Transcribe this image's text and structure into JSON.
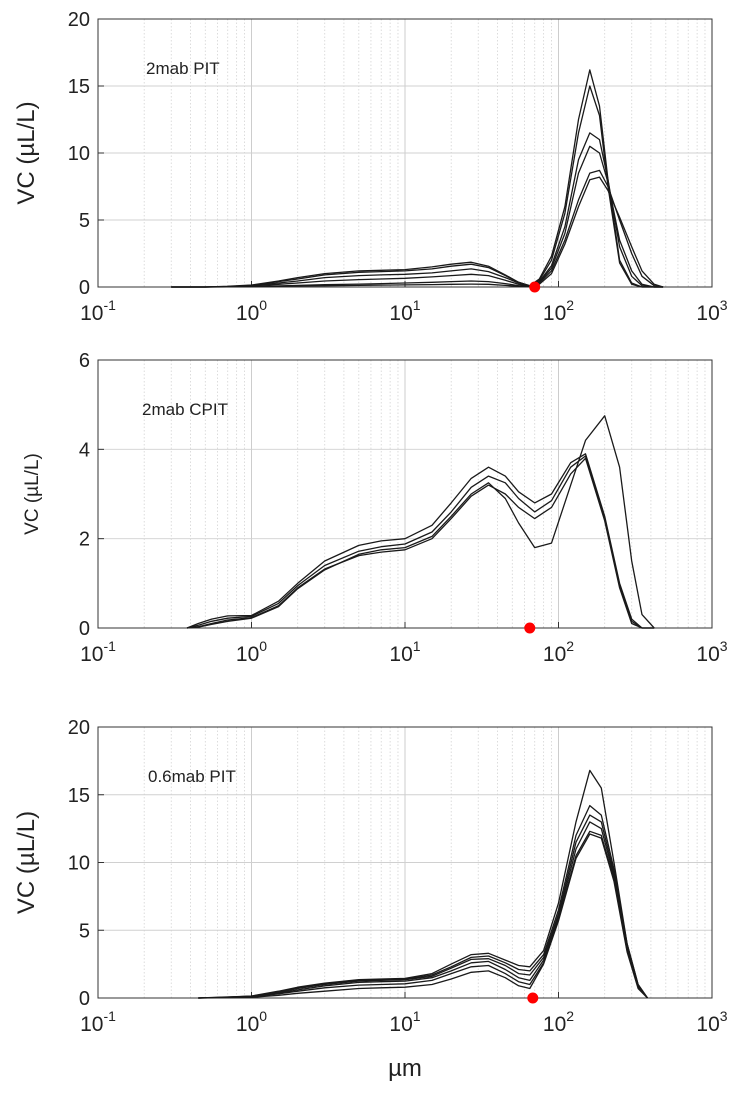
{
  "xlabel": "µm",
  "chart_data": [
    {
      "type": "line",
      "annotation": "2mab PIT",
      "ylabel": "VC (µL/L)",
      "xscale": "log",
      "xlim": [
        0.1,
        1000
      ],
      "ylim": [
        0,
        20
      ],
      "yticks": [
        "0",
        "5",
        "10",
        "15",
        "20"
      ],
      "xticks": [
        {
          "base": "10",
          "exp": "-1"
        },
        {
          "base": "10",
          "exp": "0"
        },
        {
          "base": "10",
          "exp": "1"
        },
        {
          "base": "10",
          "exp": "2"
        },
        {
          "base": "10",
          "exp": "3"
        }
      ],
      "grid": true,
      "marker": {
        "x": 70,
        "y": 0,
        "color": "#ff0000"
      },
      "x": [
        0.3,
        0.5,
        0.7,
        1,
        1.5,
        2,
        3,
        5,
        7,
        10,
        15,
        20,
        27,
        35,
        45,
        55,
        65,
        75,
        90,
        110,
        135,
        160,
        185,
        210,
        250,
        300,
        350,
        420,
        480
      ],
      "series": [
        {
          "values": [
            0,
            0,
            0.05,
            0.15,
            0.45,
            0.7,
            1.0,
            1.2,
            1.25,
            1.3,
            1.5,
            1.7,
            1.85,
            1.55,
            0.9,
            0.35,
            0.1,
            0.6,
            2.3,
            6.0,
            12.5,
            16.2,
            13.5,
            8.0,
            2.0,
            0.3,
            0,
            0,
            0
          ]
        },
        {
          "values": [
            0,
            0,
            0.04,
            0.12,
            0.4,
            0.6,
            0.9,
            1.1,
            1.15,
            1.2,
            1.35,
            1.55,
            1.7,
            1.45,
            0.85,
            0.35,
            0.1,
            0.5,
            2.0,
            5.5,
            11.5,
            15.0,
            12.8,
            7.5,
            1.8,
            0.2,
            0,
            0,
            0
          ]
        },
        {
          "values": [
            0,
            0,
            0.03,
            0.1,
            0.3,
            0.45,
            0.7,
            0.85,
            0.9,
            0.95,
            1.05,
            1.2,
            1.35,
            1.15,
            0.7,
            0.3,
            0.08,
            0.4,
            1.6,
            4.5,
            9.5,
            11.5,
            11.0,
            8.0,
            3.0,
            0.8,
            0.1,
            0,
            0
          ]
        },
        {
          "values": [
            0,
            0,
            0.02,
            0.08,
            0.2,
            0.3,
            0.45,
            0.55,
            0.6,
            0.65,
            0.75,
            0.85,
            0.95,
            0.85,
            0.5,
            0.2,
            0.05,
            0.35,
            1.4,
            4.0,
            8.5,
            10.5,
            10.0,
            7.8,
            3.5,
            1.2,
            0.2,
            0,
            0
          ]
        },
        {
          "values": [
            0,
            0,
            0.01,
            0.03,
            0.08,
            0.12,
            0.18,
            0.22,
            0.25,
            0.3,
            0.35,
            0.4,
            0.45,
            0.4,
            0.25,
            0.1,
            0.05,
            0.3,
            1.2,
            3.5,
            6.5,
            8.5,
            8.7,
            7.5,
            5.0,
            2.5,
            0.8,
            0.1,
            0
          ]
        },
        {
          "values": [
            0,
            0,
            0.01,
            0.02,
            0.05,
            0.08,
            0.1,
            0.12,
            0.14,
            0.16,
            0.18,
            0.2,
            0.22,
            0.2,
            0.12,
            0.05,
            0.03,
            0.2,
            1.0,
            3.2,
            6.0,
            8.0,
            8.2,
            7.2,
            5.2,
            3.0,
            1.2,
            0.2,
            0
          ]
        }
      ]
    },
    {
      "type": "line",
      "annotation": "2mab CPIT",
      "ylabel": "VC (µL/L)",
      "xscale": "log",
      "xlim": [
        0.1,
        1000
      ],
      "ylim": [
        0,
        6
      ],
      "yticks": [
        "0",
        "2",
        "4",
        "6"
      ],
      "xticks": [
        {
          "base": "10",
          "exp": "-1"
        },
        {
          "base": "10",
          "exp": "0"
        },
        {
          "base": "10",
          "exp": "1"
        },
        {
          "base": "10",
          "exp": "2"
        },
        {
          "base": "10",
          "exp": "3"
        }
      ],
      "grid": true,
      "marker": {
        "x": 65,
        "y": 0,
        "color": "#ff0000"
      },
      "x": [
        0.38,
        0.45,
        0.55,
        0.7,
        1,
        1.5,
        2,
        3,
        5,
        7,
        10,
        15,
        20,
        27,
        35,
        45,
        55,
        70,
        90,
        120,
        150,
        200,
        250,
        300,
        350,
        420
      ],
      "series": [
        {
          "values": [
            0,
            0.1,
            0.2,
            0.27,
            0.28,
            0.6,
            1.0,
            1.5,
            1.85,
            1.95,
            2.0,
            2.3,
            2.8,
            3.35,
            3.6,
            3.4,
            3.05,
            2.8,
            3.0,
            3.7,
            3.9,
            2.5,
            1.0,
            0.2,
            0,
            0
          ]
        },
        {
          "values": [
            0,
            0.06,
            0.15,
            0.22,
            0.26,
            0.55,
            0.95,
            1.4,
            1.72,
            1.82,
            1.88,
            2.15,
            2.6,
            3.15,
            3.4,
            3.25,
            2.9,
            2.6,
            2.85,
            3.6,
            3.85,
            2.45,
            0.95,
            0.15,
            0,
            0
          ]
        },
        {
          "values": [
            0,
            0.03,
            0.1,
            0.18,
            0.23,
            0.5,
            0.9,
            1.32,
            1.62,
            1.7,
            1.75,
            2.0,
            2.45,
            2.95,
            3.2,
            3.0,
            2.7,
            2.45,
            2.7,
            3.45,
            3.8,
            2.4,
            0.9,
            0.1,
            0,
            0
          ]
        },
        {
          "values": [
            0,
            0.02,
            0.08,
            0.15,
            0.22,
            0.48,
            0.88,
            1.3,
            1.65,
            1.75,
            1.8,
            2.05,
            2.5,
            3.0,
            3.25,
            2.9,
            2.35,
            1.8,
            1.9,
            3.2,
            4.2,
            4.75,
            3.6,
            1.5,
            0.3,
            0
          ]
        }
      ]
    },
    {
      "type": "line",
      "annotation": "0.6mab PIT",
      "ylabel": "VC (µL/L)",
      "xscale": "log",
      "xlim": [
        0.1,
        1000
      ],
      "ylim": [
        0,
        20
      ],
      "yticks": [
        "0",
        "5",
        "10",
        "15",
        "20"
      ],
      "xticks": [
        {
          "base": "10",
          "exp": "-1"
        },
        {
          "base": "10",
          "exp": "0"
        },
        {
          "base": "10",
          "exp": "1"
        },
        {
          "base": "10",
          "exp": "2"
        },
        {
          "base": "10",
          "exp": "3"
        }
      ],
      "grid": true,
      "marker": {
        "x": 68,
        "y": 0,
        "color": "#ff0000"
      },
      "x": [
        0.45,
        0.6,
        0.8,
        1,
        1.5,
        2,
        3,
        5,
        7,
        10,
        15,
        20,
        27,
        35,
        45,
        55,
        65,
        80,
        100,
        130,
        160,
        190,
        230,
        280,
        330,
        380
      ],
      "series": [
        {
          "values": [
            0,
            0.05,
            0.1,
            0.15,
            0.5,
            0.8,
            1.1,
            1.35,
            1.4,
            1.45,
            1.8,
            2.5,
            3.2,
            3.3,
            2.8,
            2.4,
            2.3,
            3.5,
            7.0,
            13.0,
            16.8,
            15.5,
            10.0,
            4.0,
            1.0,
            0
          ]
        },
        {
          "values": [
            0,
            0.04,
            0.09,
            0.13,
            0.45,
            0.75,
            1.05,
            1.3,
            1.35,
            1.4,
            1.7,
            2.3,
            3.0,
            3.1,
            2.6,
            2.1,
            2.0,
            3.2,
            6.5,
            12.0,
            14.2,
            13.5,
            9.5,
            4.0,
            1.0,
            0
          ]
        },
        {
          "values": [
            0,
            0.03,
            0.08,
            0.12,
            0.4,
            0.7,
            1.0,
            1.25,
            1.3,
            1.35,
            1.6,
            2.2,
            2.85,
            2.9,
            2.4,
            1.8,
            1.7,
            3.0,
            6.2,
            11.5,
            13.5,
            13.0,
            9.2,
            3.8,
            0.9,
            0
          ]
        },
        {
          "values": [
            0,
            0.02,
            0.07,
            0.1,
            0.35,
            0.6,
            0.9,
            1.15,
            1.2,
            1.25,
            1.5,
            2.0,
            2.6,
            2.7,
            2.1,
            1.5,
            1.3,
            2.8,
            6.0,
            11.0,
            13.0,
            12.5,
            9.0,
            3.6,
            0.8,
            0
          ]
        },
        {
          "values": [
            0,
            0.02,
            0.05,
            0.08,
            0.3,
            0.5,
            0.75,
            0.95,
            1.0,
            1.05,
            1.3,
            1.8,
            2.3,
            2.4,
            1.8,
            1.2,
            1.0,
            2.6,
            5.8,
            10.5,
            12.3,
            12.0,
            8.8,
            3.5,
            0.8,
            0
          ]
        },
        {
          "values": [
            0,
            0.01,
            0.03,
            0.05,
            0.2,
            0.35,
            0.5,
            0.7,
            0.75,
            0.8,
            1.0,
            1.4,
            1.9,
            2.0,
            1.5,
            0.9,
            0.7,
            2.5,
            5.7,
            10.3,
            12.1,
            11.8,
            8.6,
            3.4,
            0.7,
            0
          ]
        }
      ]
    }
  ]
}
